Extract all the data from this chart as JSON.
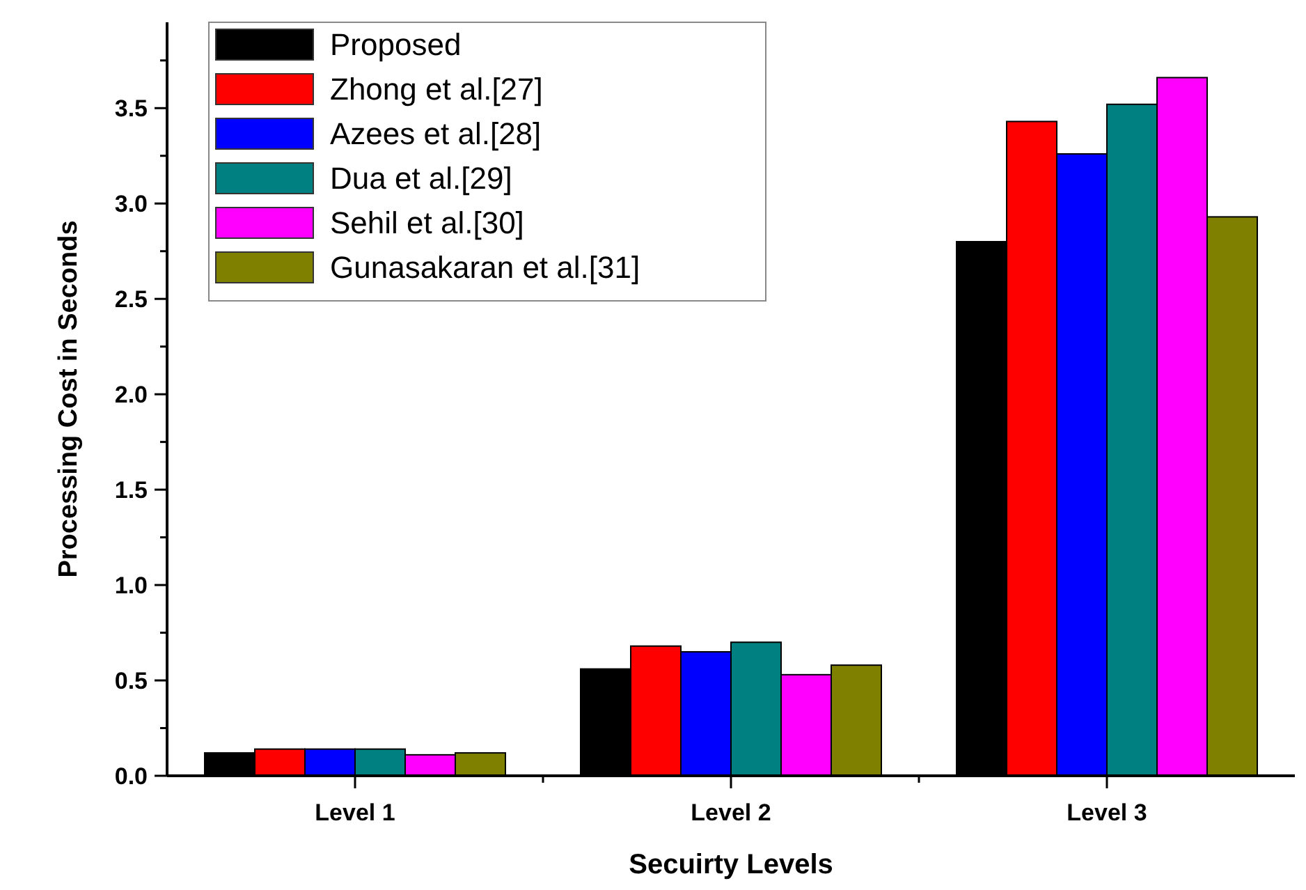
{
  "chart_data": {
    "type": "bar",
    "xlabel": "Secuirty Levels",
    "ylabel": "Processing Cost in Seconds",
    "categories": [
      "Level 1",
      "Level 2",
      "Level 3"
    ],
    "series": [
      {
        "name": "Proposed",
        "color": "#000000",
        "values": [
          0.12,
          0.56,
          2.8
        ]
      },
      {
        "name": "Zhong et al.[27]",
        "color": "#ff0000",
        "values": [
          0.14,
          0.68,
          3.43
        ]
      },
      {
        "name": "Azees et al.[28]",
        "color": "#0000ff",
        "values": [
          0.14,
          0.65,
          3.26
        ]
      },
      {
        "name": "Dua et al.[29]",
        "color": "#008080",
        "values": [
          0.14,
          0.7,
          3.52
        ]
      },
      {
        "name": "Sehil et al.[30]",
        "color": "#ff00ff",
        "values": [
          0.11,
          0.53,
          3.66
        ]
      },
      {
        "name": "Gunasakaran et al.[31]",
        "color": "#808000",
        "values": [
          0.12,
          0.58,
          2.93
        ]
      }
    ],
    "ylim": [
      0,
      3.95
    ],
    "yticks": [
      {
        "value": 0,
        "label": "0.0"
      },
      {
        "value": 0.25,
        "label": null
      },
      {
        "value": 0.5,
        "label": "0.5"
      },
      {
        "value": 0.75,
        "label": null
      },
      {
        "value": 1,
        "label": "1.0"
      },
      {
        "value": 1.25,
        "label": null
      },
      {
        "value": 1.5,
        "label": "1.5"
      },
      {
        "value": 1.75,
        "label": null
      },
      {
        "value": 2,
        "label": "2.0"
      },
      {
        "value": 2.25,
        "label": null
      },
      {
        "value": 2.5,
        "label": "2.5"
      },
      {
        "value": 2.75,
        "label": null
      },
      {
        "value": 3,
        "label": "3.0"
      },
      {
        "value": 3.25,
        "label": null
      },
      {
        "value": 3.5,
        "label": "3.5"
      },
      {
        "value": 3.75,
        "label": null
      }
    ],
    "grid": false,
    "legend": "top left"
  }
}
